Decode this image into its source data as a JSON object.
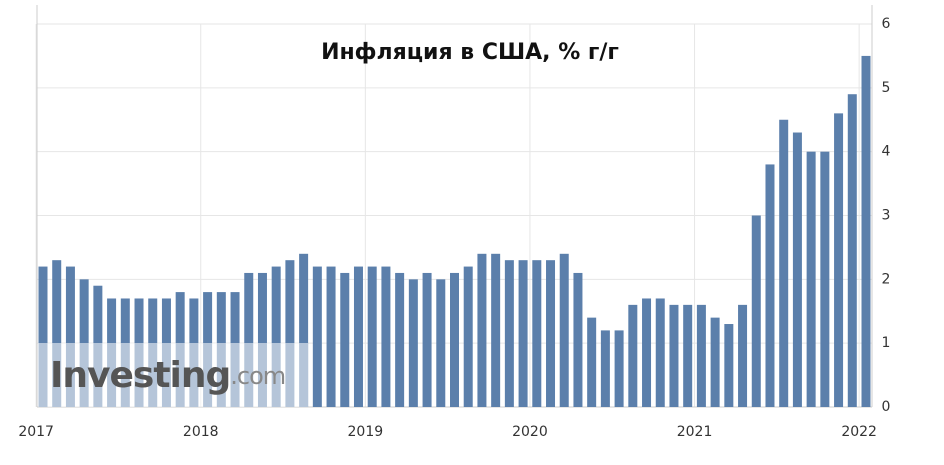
{
  "chart_data": {
    "type": "bar",
    "title": "Инфляция в США, % г/г",
    "watermark": {
      "name": "Investing",
      "suffix": ".com"
    },
    "categories": [
      "2017",
      null,
      null,
      null,
      null,
      null,
      null,
      null,
      null,
      null,
      null,
      null,
      "2018",
      null,
      null,
      null,
      null,
      null,
      null,
      null,
      null,
      null,
      null,
      null,
      "2019",
      null,
      null,
      null,
      null,
      null,
      null,
      null,
      null,
      null,
      null,
      null,
      "2020",
      null,
      null,
      null,
      null,
      null,
      null,
      null,
      null,
      null,
      null,
      null,
      "2021",
      null,
      null,
      null,
      null,
      null,
      null,
      null,
      null,
      null,
      null,
      null,
      "2022"
    ],
    "values": [
      2.2,
      2.3,
      2.2,
      2.0,
      1.9,
      1.7,
      1.7,
      1.7,
      1.7,
      1.7,
      1.8,
      1.7,
      1.8,
      1.8,
      1.8,
      2.1,
      2.1,
      2.2,
      2.3,
      2.4,
      2.2,
      2.2,
      2.1,
      2.2,
      2.2,
      2.2,
      2.1,
      2.0,
      2.1,
      2.0,
      2.1,
      2.2,
      2.4,
      2.4,
      2.3,
      2.3,
      2.3,
      2.3,
      2.4,
      2.1,
      1.4,
      1.2,
      1.2,
      1.6,
      1.7,
      1.7,
      1.6,
      1.6,
      1.6,
      1.4,
      1.3,
      1.6,
      3.0,
      3.8,
      4.5,
      4.3,
      4.0,
      4.0,
      4.6,
      4.9,
      5.5
    ],
    "color": "#5b7fab",
    "ylim": [
      0,
      6
    ],
    "yticks": [
      0,
      1,
      2,
      3,
      4,
      5,
      6
    ],
    "grid": true
  }
}
